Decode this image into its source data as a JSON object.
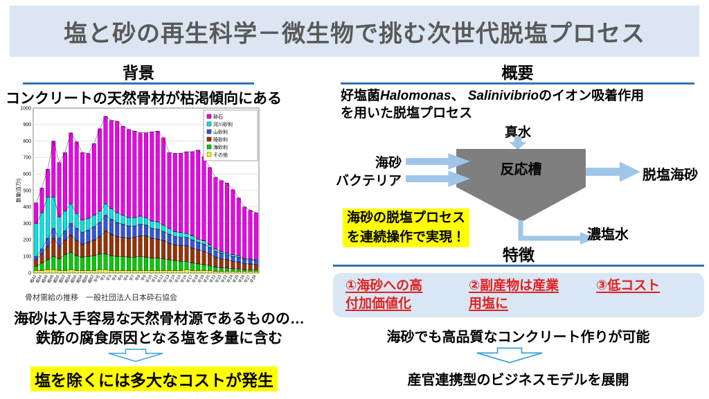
{
  "title": "塩と砂の再生科学－微生物で挑む次世代脱塩プロセス",
  "left": {
    "heading": "背景",
    "statement": "コンクリートの天然骨材が枯渇傾向にある",
    "chart_caption": "骨材需給の推移　一般社団法人日本砕石協会",
    "note_line1": "海砂は入手容易な天然骨材源であるものの…",
    "note_line2": "鉄筋の腐食原因となる塩を多量に含む",
    "highlight": "塩を除くには多大なコストが発生"
  },
  "right": {
    "heading": "概要",
    "desc": {
      "seg1": "好塩菌",
      "italic1": "Halomonas",
      "seg2": "、 ",
      "italic2": "Salinivibrio",
      "seg3": "のイオン吸着作用",
      "line2": "を用いた脱塩プロセス"
    },
    "diagram": {
      "top_input": "真水",
      "left_input1": "海砂",
      "left_input2": "バクテリア",
      "tank": "反応槽",
      "right_output": "脱塩海砂",
      "bottom_output": "濃塩水",
      "highlight_line1": "海砂の脱塩プロセス",
      "highlight_line2": "を連続操作で実現！"
    },
    "features_heading": "特徴",
    "features": [
      "①海砂への高付加価値化",
      "②副産物は産業用塩に",
      "③低コスト"
    ],
    "conclusion1": "海砂でも高品質なコンクリート作りが可能",
    "conclusion2": "産官連携型のビジネスモデルを展開"
  },
  "colors": {
    "title_bg": "#dbe6f2",
    "title_text": "#595959",
    "heading_underline": "#2e74b5",
    "diagram_arrow": "#9fc5e8",
    "outline_arrow": "#3aa0d8",
    "funnel_gray": "#7f7f7f",
    "highlight_yellow": "#ffff00",
    "feature_red": "#e02020",
    "feature_box_bg": "#d9e6f3"
  },
  "chart_data": {
    "type": "bar",
    "stacked": true,
    "title": "",
    "xlabel": "",
    "ylabel": "数量(百万t)",
    "ylim": [
      0,
      1000
    ],
    "ytick_interval": 100,
    "grid": true,
    "legend_position": "top-right-inside",
    "legend_order_top_first": [
      "砕石",
      "河川砂利",
      "山砂利",
      "陸砂利",
      "海砂利",
      "その他"
    ],
    "categories": [
      "昭42",
      "昭44",
      "昭46",
      "昭48",
      "昭50",
      "昭52",
      "昭54",
      "昭56",
      "昭58",
      "昭60",
      "昭62",
      "平元",
      "平2",
      "平3",
      "平4",
      "平5",
      "平6",
      "平7",
      "平8",
      "平9",
      "平10",
      "平11",
      "平12",
      "平13",
      "平14",
      "平15",
      "平16",
      "平17",
      "平18",
      "平19",
      "平20",
      "平21",
      "平22",
      "平23",
      "平24",
      "平25",
      "平26",
      "平27",
      "平28"
    ],
    "series": [
      {
        "name": "その他",
        "color": "#ffff00",
        "values": [
          15,
          15,
          20,
          20,
          15,
          15,
          20,
          15,
          15,
          15,
          15,
          20,
          20,
          15,
          15,
          15,
          15,
          15,
          15,
          15,
          15,
          15,
          15,
          15,
          15,
          15,
          20,
          15,
          15,
          15,
          15,
          10,
          10,
          10,
          10,
          10,
          10,
          10,
          10
        ]
      },
      {
        "name": "海砂利",
        "color": "#00cc00",
        "values": [
          25,
          45,
          60,
          80,
          70,
          95,
          105,
          90,
          80,
          85,
          90,
          95,
          95,
          90,
          85,
          85,
          80,
          80,
          85,
          80,
          75,
          75,
          70,
          65,
          60,
          55,
          50,
          45,
          40,
          35,
          30,
          25,
          20,
          20,
          15,
          15,
          10,
          10,
          10
        ]
      },
      {
        "name": "陸砂利",
        "color": "#993300",
        "values": [
          40,
          55,
          80,
          110,
          75,
          90,
          105,
          90,
          80,
          85,
          95,
          105,
          140,
          130,
          120,
          115,
          115,
          120,
          125,
          130,
          120,
          115,
          110,
          100,
          95,
          95,
          95,
          90,
          85,
          80,
          70,
          60,
          55,
          50,
          45,
          40,
          35,
          35,
          30
        ]
      },
      {
        "name": "山砂利",
        "color": "#3355dd",
        "values": [
          20,
          30,
          50,
          60,
          50,
          55,
          70,
          75,
          70,
          75,
          80,
          85,
          95,
          90,
          85,
          80,
          75,
          70,
          70,
          65,
          60,
          60,
          55,
          55,
          50,
          50,
          50,
          50,
          45,
          45,
          40,
          35,
          35,
          30,
          30,
          30,
          25,
          25,
          25
        ]
      },
      {
        "name": "河川砂利",
        "color": "#00e5e5",
        "values": [
          200,
          220,
          250,
          190,
          130,
          120,
          120,
          90,
          75,
          70,
          70,
          70,
          70,
          65,
          60,
          55,
          50,
          50,
          50,
          45,
          45,
          45,
          40,
          35,
          30,
          30,
          25,
          25,
          20,
          20,
          15,
          15,
          10,
          10,
          10,
          10,
          5,
          5,
          5
        ]
      },
      {
        "name": "砕石",
        "color": "#ee00ee",
        "values": [
          125,
          150,
          170,
          340,
          330,
          355,
          430,
          435,
          410,
          395,
          435,
          500,
          530,
          535,
          555,
          540,
          535,
          525,
          505,
          515,
          540,
          550,
          530,
          460,
          475,
          480,
          495,
          510,
          540,
          510,
          470,
          435,
          430,
          425,
          395,
          350,
          315,
          295,
          285
        ]
      }
    ]
  }
}
